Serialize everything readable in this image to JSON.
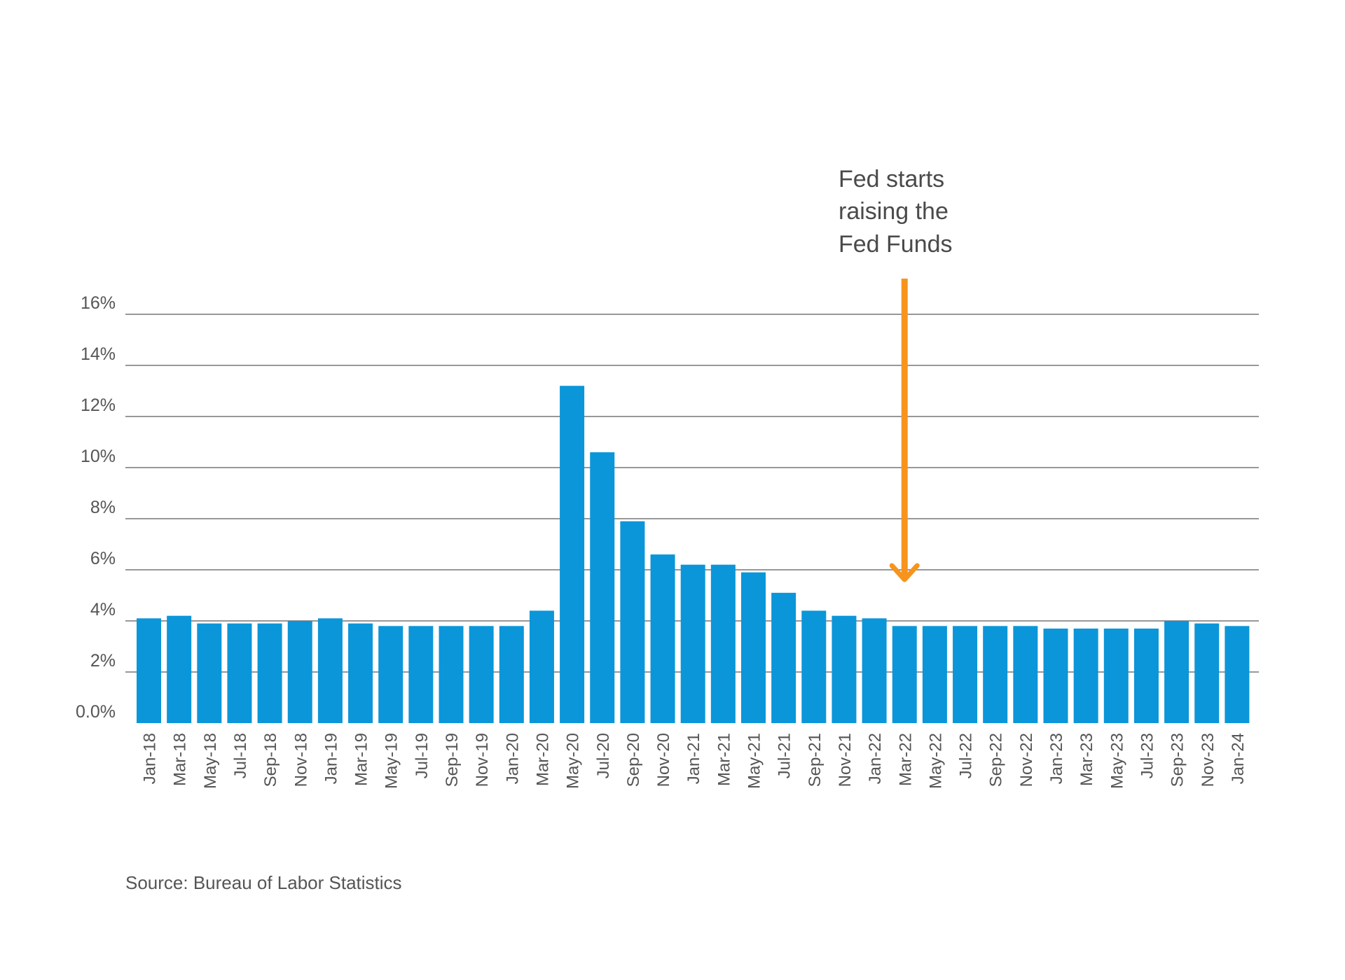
{
  "chart_data": {
    "type": "bar",
    "categories": [
      "Jan-18",
      "Mar-18",
      "May-18",
      "Jul-18",
      "Sep-18",
      "Nov-18",
      "Jan-19",
      "Mar-19",
      "May-19",
      "Jul-19",
      "Sep-19",
      "Nov-19",
      "Jan-20",
      "Mar-20",
      "May-20",
      "Jul-20",
      "Sep-20",
      "Nov-20",
      "Jan-21",
      "Mar-21",
      "May-21",
      "Jul-21",
      "Sep-21",
      "Nov-21",
      "Jan-22",
      "Mar-22",
      "May-22",
      "Jul-22",
      "Sep-22",
      "Nov-22",
      "Jan-23",
      "Mar-23",
      "May-23",
      "Jul-23",
      "Sep-23",
      "Nov-23",
      "Jan-24"
    ],
    "values": [
      4.1,
      4.2,
      3.9,
      3.9,
      3.9,
      4.0,
      4.1,
      3.9,
      3.8,
      3.8,
      3.8,
      3.8,
      3.8,
      4.4,
      13.2,
      10.6,
      7.9,
      6.6,
      6.2,
      6.2,
      5.9,
      5.1,
      4.4,
      4.2,
      4.1,
      3.8,
      3.8,
      3.8,
      3.8,
      3.8,
      3.7,
      3.7,
      3.7,
      3.7,
      4.0,
      3.9,
      3.8
    ],
    "ylim": [
      0,
      16
    ],
    "y_ticks": [
      0,
      2,
      4,
      6,
      8,
      10,
      12,
      14,
      16
    ],
    "y_tick_labels": [
      "0.0%",
      "2%",
      "4%",
      "6%",
      "8%",
      "10%",
      "12%",
      "14%",
      "16%"
    ],
    "grid": true,
    "bar_color": "#0b96d9",
    "gridline_color": "#777777",
    "annotation": {
      "lines": [
        "Fed starts",
        "raising the",
        "Fed Funds"
      ],
      "points_to_category": "Mar-22",
      "arrow_color": "#f7941d"
    },
    "source": "Source: Bureau of Labor Statistics"
  }
}
